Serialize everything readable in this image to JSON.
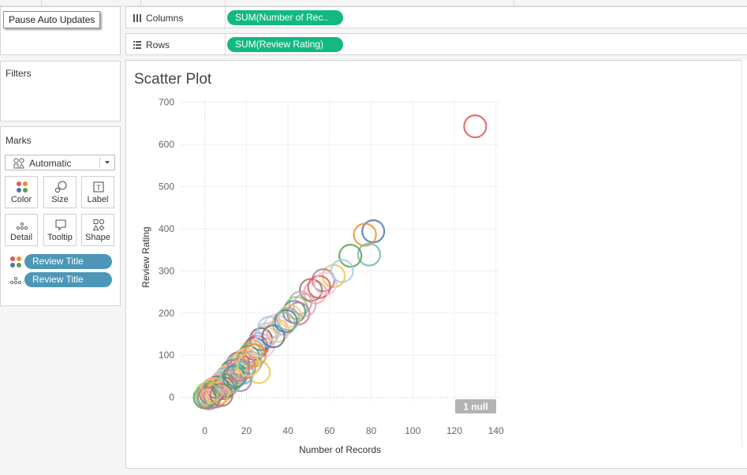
{
  "toolbar": {
    "pause_label": "Pause Auto Updates"
  },
  "shelves": {
    "columns": {
      "label": "Columns",
      "pill": "SUM(Number of Rec.."
    },
    "rows": {
      "label": "Rows",
      "pill": "SUM(Review Rating)"
    }
  },
  "filters": {
    "title": "Filters"
  },
  "marks": {
    "title": "Marks",
    "mark_type": "Automatic",
    "buttons": [
      {
        "label": "Color",
        "icon": "color-dots-icon"
      },
      {
        "label": "Size",
        "icon": "size-icon"
      },
      {
        "label": "Label",
        "icon": "label-icon"
      },
      {
        "label": "Detail",
        "icon": "detail-dots-icon"
      },
      {
        "label": "Tooltip",
        "icon": "tooltip-icon"
      },
      {
        "label": "Shape",
        "icon": "shape-icon"
      }
    ],
    "fields": [
      {
        "encoding": "color",
        "field": "Review Title"
      },
      {
        "encoding": "detail",
        "field": "Review Title"
      }
    ]
  },
  "sheet": {
    "title": "Scatter Plot"
  },
  "null_badge": "1 null",
  "chart_data": {
    "type": "scatter",
    "title": "Scatter Plot",
    "xlabel": "Number of Records",
    "ylabel": "Review Rating",
    "xlim": [
      -12,
      142
    ],
    "ylim": [
      -10,
      705
    ],
    "xticks": [
      "0",
      "20",
      "40",
      "60",
      "80",
      "100",
      "120",
      "140"
    ],
    "yticks": [
      "0",
      "100",
      "200",
      "300",
      "400",
      "500",
      "600",
      "700"
    ],
    "xtick_values": [
      0,
      20,
      40,
      60,
      80,
      100,
      120,
      140
    ],
    "ytick_values": [
      0,
      100,
      200,
      300,
      400,
      500,
      600,
      700
    ],
    "marker": "open-circle",
    "palette": [
      "#e15759",
      "#4e79a7",
      "#f28e2b",
      "#76b7b2",
      "#59a14f",
      "#edc948",
      "#b07aa1",
      "#ff9da7",
      "#9c755f",
      "#bab0ac",
      "#8cd17d",
      "#499894",
      "#d37295",
      "#f1ce63",
      "#86bcb6",
      "#fabfd2",
      "#a0cbe8",
      "#ffbe7d",
      "#79706e",
      "#d4a6c8"
    ],
    "points": [
      [
        130,
        643
      ],
      [
        81,
        394
      ],
      [
        77,
        386
      ],
      [
        79,
        339
      ],
      [
        70,
        336
      ],
      [
        62,
        288
      ],
      [
        57,
        278
      ],
      [
        53,
        249
      ],
      [
        51,
        255
      ],
      [
        46,
        225
      ],
      [
        44,
        212
      ],
      [
        43,
        203
      ],
      [
        45,
        199
      ],
      [
        41,
        193
      ],
      [
        38,
        175
      ],
      [
        34,
        170
      ],
      [
        31,
        165
      ],
      [
        29,
        142
      ],
      [
        27,
        138
      ],
      [
        26,
        127
      ],
      [
        25,
        120
      ],
      [
        24,
        115
      ],
      [
        23,
        109
      ],
      [
        22,
        102
      ],
      [
        21,
        96
      ],
      [
        26,
        60
      ],
      [
        17,
        41
      ],
      [
        18,
        86
      ],
      [
        16,
        80
      ],
      [
        15,
        72
      ],
      [
        14,
        66
      ],
      [
        13,
        62
      ],
      [
        12,
        55
      ],
      [
        11,
        50
      ],
      [
        10,
        44
      ],
      [
        9,
        39
      ],
      [
        8,
        34
      ],
      [
        7,
        28
      ],
      [
        6,
        24
      ],
      [
        5,
        18
      ],
      [
        4,
        13
      ],
      [
        3,
        8
      ],
      [
        2,
        4
      ],
      [
        1,
        1
      ],
      [
        0,
        0
      ],
      [
        3,
        15
      ],
      [
        5,
        2
      ],
      [
        7,
        11
      ],
      [
        9,
        22
      ],
      [
        11,
        30
      ],
      [
        13,
        45
      ],
      [
        15,
        52
      ],
      [
        19,
        71
      ],
      [
        20,
        90
      ],
      [
        22,
        83
      ],
      [
        28,
        122
      ],
      [
        30,
        150
      ],
      [
        35,
        158
      ],
      [
        39,
        181
      ],
      [
        48,
        219
      ],
      [
        55,
        262
      ],
      [
        33,
        145
      ],
      [
        24,
        100
      ],
      [
        18,
        58
      ],
      [
        10,
        28
      ],
      [
        6,
        10
      ],
      [
        2,
        -2
      ],
      [
        4,
        20
      ],
      [
        8,
        6
      ],
      [
        12,
        36
      ],
      [
        1,
        9
      ],
      [
        14,
        48
      ],
      [
        16,
        65
      ],
      [
        21,
        77
      ],
      [
        40,
        186
      ],
      [
        58,
        270
      ],
      [
        66,
        300
      ]
    ]
  }
}
